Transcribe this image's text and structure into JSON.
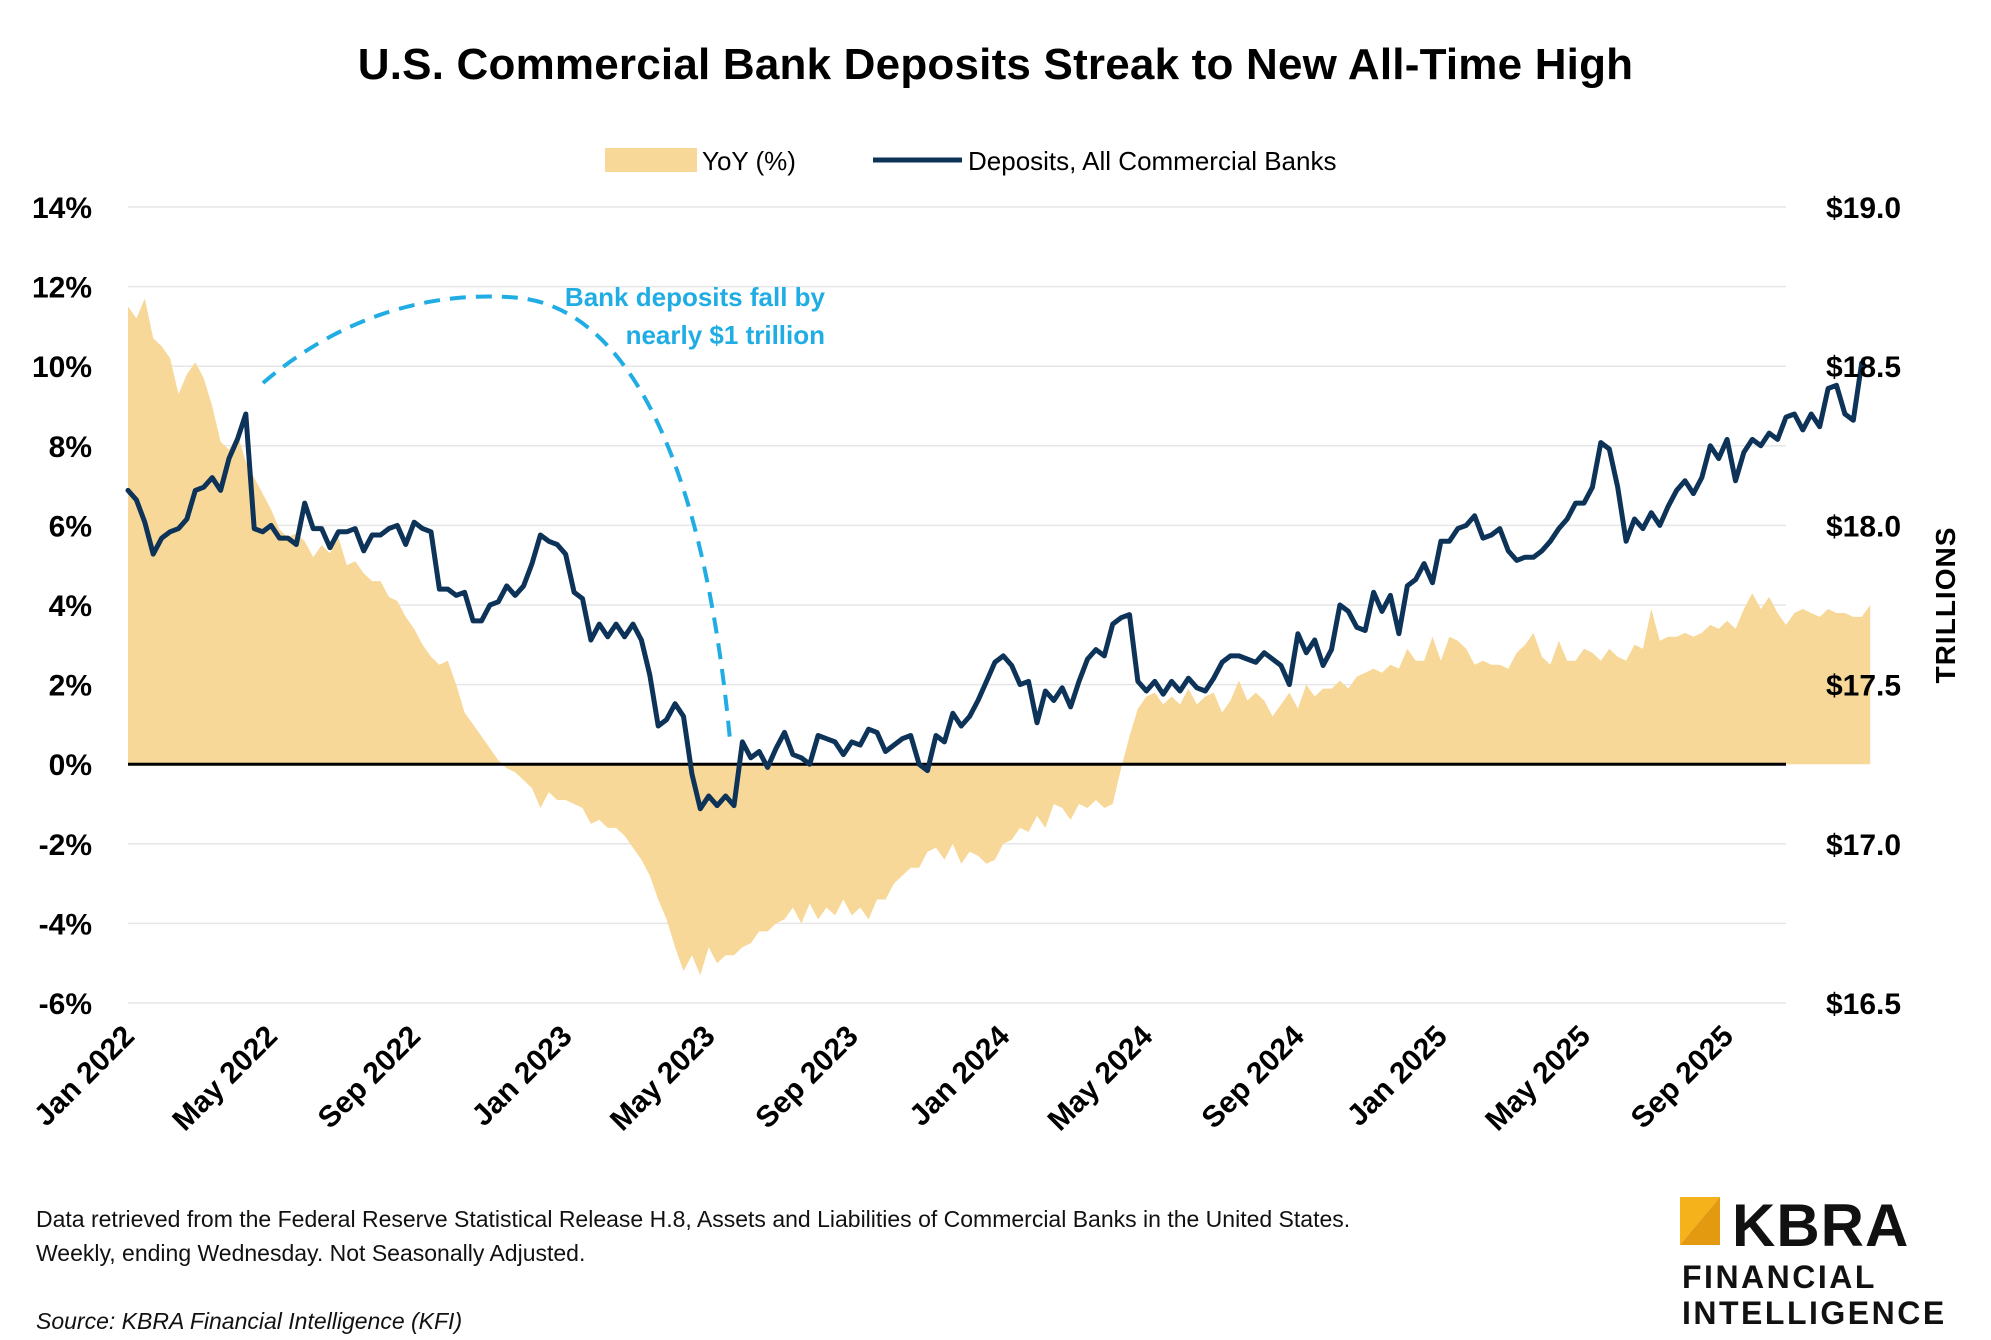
{
  "chart_data": {
    "type": "line+area",
    "title": "U.S. Commercial Bank Deposits Streak to New All-Time High",
    "legend": {
      "placement": "top-center",
      "entries": [
        "YoY (%)",
        "Deposits, All Commercial Banks"
      ]
    },
    "y_left": {
      "ticks": [
        "14%",
        "12%",
        "10%",
        "8%",
        "6%",
        "4%",
        "2%",
        "0%",
        "-2%",
        "-4%",
        "-6%"
      ],
      "range": [
        -6,
        14
      ]
    },
    "y_right": {
      "ticks": [
        "$19.0",
        "$18.5",
        "$18.0",
        "$17.5",
        "$17.0",
        "$16.5"
      ],
      "range": [
        16.5,
        19.0
      ],
      "label": "TRILLIONS"
    },
    "x": {
      "range_weeks": [
        0,
        197
      ],
      "tick_labels": [
        "Jan 2022",
        "May 2022",
        "Sep 2022",
        "Jan 2023",
        "May 2023",
        "Sep 2023",
        "Jan 2024",
        "May 2024",
        "Sep 2024",
        "Jan 2025",
        "May 2025",
        "Sep 2025"
      ],
      "tick_weeks": [
        0,
        17,
        34,
        52,
        69,
        86,
        104,
        121,
        139,
        156,
        173,
        190
      ]
    },
    "annotation": {
      "line1": "Bank deposits fall by",
      "line2": "nearly $1 trillion"
    },
    "series": [
      {
        "name": "YoY (%)",
        "type": "area",
        "color": "#f7d898",
        "values": [
          11.5,
          11.2,
          11.7,
          10.7,
          10.5,
          10.2,
          9.3,
          9.8,
          10.1,
          9.7,
          9.0,
          8.1,
          7.9,
          8.3,
          7.6,
          7.2,
          6.8,
          6.4,
          5.9,
          5.7,
          5.8,
          5.6,
          5.2,
          5.5,
          5.3,
          5.7,
          5.0,
          5.1,
          4.8,
          4.6,
          4.6,
          4.2,
          4.1,
          3.7,
          3.4,
          3.0,
          2.7,
          2.5,
          2.6,
          2.0,
          1.3,
          1.0,
          0.7,
          0.4,
          0.1,
          -0.1,
          -0.2,
          -0.4,
          -0.6,
          -1.1,
          -0.7,
          -0.9,
          -0.9,
          -1.0,
          -1.1,
          -1.5,
          -1.4,
          -1.6,
          -1.6,
          -1.8,
          -2.1,
          -2.4,
          -2.8,
          -3.4,
          -3.9,
          -4.6,
          -5.2,
          -4.8,
          -5.3,
          -4.6,
          -5.0,
          -4.8,
          -4.8,
          -4.6,
          -4.5,
          -4.2,
          -4.2,
          -4.0,
          -3.9,
          -3.6,
          -4.0,
          -3.5,
          -3.9,
          -3.6,
          -3.8,
          -3.4,
          -3.8,
          -3.6,
          -3.9,
          -3.4,
          -3.4,
          -3.0,
          -2.8,
          -2.6,
          -2.6,
          -2.2,
          -2.1,
          -2.4,
          -2.0,
          -2.5,
          -2.2,
          -2.3,
          -2.5,
          -2.4,
          -2.0,
          -1.9,
          -1.6,
          -1.7,
          -1.3,
          -1.6,
          -1.0,
          -1.1,
          -1.4,
          -1.0,
          -1.1,
          -0.9,
          -1.1,
          -1.0,
          -0.1,
          0.7,
          1.4,
          1.7,
          1.8,
          1.5,
          1.7,
          1.5,
          1.9,
          1.5,
          1.7,
          1.8,
          1.3,
          1.6,
          2.1,
          1.6,
          1.8,
          1.6,
          1.2,
          1.5,
          1.8,
          1.4,
          2.0,
          1.7,
          1.9,
          1.9,
          2.1,
          1.9,
          2.2,
          2.3,
          2.4,
          2.3,
          2.5,
          2.4,
          2.9,
          2.6,
          2.6,
          3.2,
          2.6,
          3.2,
          3.1,
          2.9,
          2.5,
          2.6,
          2.5,
          2.5,
          2.4,
          2.8,
          3.0,
          3.3,
          2.7,
          2.5,
          3.1,
          2.6,
          2.6,
          2.9,
          2.8,
          2.6,
          2.9,
          2.7,
          2.6,
          3.0,
          2.9,
          3.9,
          3.1,
          3.2,
          3.2,
          3.3,
          3.2,
          3.3,
          3.5,
          3.4,
          3.6,
          3.4,
          3.9,
          4.3,
          3.9,
          4.2,
          3.8,
          3.5,
          3.8,
          3.9,
          3.8,
          3.7,
          3.9,
          3.8,
          3.8,
          3.7,
          3.7,
          4.0
        ]
      },
      {
        "name": "Deposits, All Commercial Banks",
        "type": "line",
        "color": "#0d3359",
        "values": [
          18.11,
          18.08,
          18.01,
          17.91,
          17.96,
          17.98,
          17.99,
          18.02,
          18.11,
          18.12,
          18.15,
          18.11,
          18.21,
          18.27,
          18.35,
          17.99,
          17.98,
          18.0,
          17.96,
          17.96,
          17.94,
          18.07,
          17.99,
          17.99,
          17.93,
          17.98,
          17.98,
          17.99,
          17.92,
          17.97,
          17.97,
          17.99,
          18.0,
          17.94,
          18.01,
          17.99,
          17.98,
          17.8,
          17.8,
          17.78,
          17.79,
          17.7,
          17.7,
          17.75,
          17.76,
          17.81,
          17.78,
          17.81,
          17.88,
          17.97,
          17.95,
          17.94,
          17.91,
          17.79,
          17.77,
          17.64,
          17.69,
          17.65,
          17.69,
          17.65,
          17.69,
          17.64,
          17.53,
          17.37,
          17.39,
          17.44,
          17.4,
          17.22,
          17.11,
          17.15,
          17.12,
          17.15,
          17.12,
          17.32,
          17.27,
          17.29,
          17.24,
          17.3,
          17.35,
          17.28,
          17.27,
          17.25,
          17.34,
          17.33,
          17.32,
          17.28,
          17.32,
          17.31,
          17.36,
          17.35,
          17.29,
          17.31,
          17.33,
          17.34,
          17.25,
          17.23,
          17.34,
          17.32,
          17.41,
          17.37,
          17.4,
          17.45,
          17.51,
          17.57,
          17.59,
          17.56,
          17.5,
          17.51,
          17.38,
          17.48,
          17.45,
          17.49,
          17.43,
          17.51,
          17.58,
          17.61,
          17.59,
          17.69,
          17.71,
          17.72,
          17.51,
          17.48,
          17.51,
          17.47,
          17.51,
          17.48,
          17.52,
          17.49,
          17.48,
          17.52,
          17.57,
          17.59,
          17.59,
          17.58,
          17.57,
          17.6,
          17.58,
          17.56,
          17.5,
          17.66,
          17.6,
          17.64,
          17.56,
          17.61,
          17.75,
          17.73,
          17.68,
          17.67,
          17.79,
          17.73,
          17.78,
          17.66,
          17.81,
          17.83,
          17.88,
          17.82,
          17.95,
          17.95,
          17.99,
          18.0,
          18.03,
          17.96,
          17.97,
          17.99,
          17.92,
          17.89,
          17.9,
          17.9,
          17.92,
          17.95,
          17.99,
          18.02,
          18.07,
          18.07,
          18.12,
          18.26,
          18.24,
          18.12,
          17.95,
          18.02,
          17.99,
          18.04,
          18.0,
          18.06,
          18.11,
          18.14,
          18.1,
          18.15,
          18.25,
          18.21,
          18.27,
          18.14,
          18.23,
          18.27,
          18.25,
          18.29,
          18.27,
          18.34,
          18.35,
          18.3,
          18.35,
          18.31,
          18.43,
          18.44,
          18.35,
          18.33,
          18.51
        ]
      }
    ]
  },
  "footer": {
    "note_line1": "Data retrieved from the Federal Reserve Statistical Release H.8, Assets and Liabilities of Commercial Banks in the United States.",
    "note_line2": "Weekly, ending Wednesday. Not Seasonally Adjusted.",
    "source": "Source: KBRA Financial Intelligence (KFI)"
  },
  "logo": {
    "word": "KBRA",
    "line1": "FINANCIAL",
    "line2": "INTELLIGENCE",
    "accent_color": "#f5b21b"
  }
}
